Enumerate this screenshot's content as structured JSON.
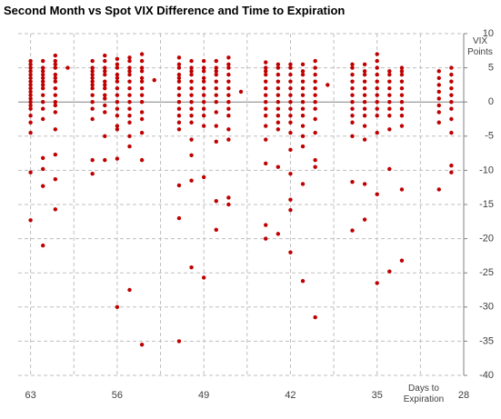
{
  "chart_data": {
    "type": "scatter",
    "title": "Second Month vs Spot VIX Difference and Time to Expiration",
    "x_label": "Days to Expiration",
    "y_label": "VIX Points",
    "color": "#c00000",
    "grid": true,
    "xlim": [
      64,
      28
    ],
    "xticks": [
      63,
      56,
      49,
      42,
      35,
      28
    ],
    "ylim": [
      10,
      -40
    ],
    "yticks": [
      10,
      5,
      0,
      -5,
      -10,
      -15,
      -20,
      -25,
      -30,
      -35,
      -40
    ],
    "x": [
      63,
      63,
      63,
      63,
      63,
      63,
      63,
      63,
      63,
      63,
      63,
      63,
      63,
      63,
      63,
      63,
      63,
      63,
      63,
      63,
      62,
      62,
      62,
      62,
      62,
      62,
      62,
      62,
      62,
      62,
      62,
      62,
      62,
      62,
      62,
      62,
      61,
      61,
      61,
      61,
      61,
      61,
      61,
      61,
      61,
      61,
      61,
      61,
      61,
      61,
      61,
      61,
      60,
      58,
      58,
      58,
      58,
      58,
      58,
      58,
      58,
      58,
      58,
      58,
      58,
      58,
      58,
      57,
      57,
      57,
      57,
      57,
      57,
      57,
      57,
      57,
      57,
      57,
      57,
      57,
      57,
      56,
      56,
      56,
      56,
      56,
      56,
      56,
      56,
      56,
      56,
      56,
      56,
      56,
      56,
      56,
      55,
      55,
      55,
      55,
      55,
      55,
      55,
      55,
      55,
      55,
      55,
      55,
      55,
      55,
      55,
      54,
      54,
      54,
      54,
      54,
      54,
      54,
      54,
      54,
      54,
      54,
      54,
      54,
      54,
      53,
      51,
      51,
      51,
      51,
      51,
      51,
      51,
      51,
      51,
      51,
      51,
      51,
      51,
      51,
      51,
      51,
      50,
      50,
      50,
      50,
      50,
      50,
      50,
      50,
      50,
      50,
      50,
      50,
      50,
      50,
      50,
      49,
      49,
      49,
      49,
      49,
      49,
      49,
      49,
      49,
      49,
      49,
      49,
      49,
      48,
      48,
      48,
      48,
      48,
      48,
      48,
      48,
      48,
      48,
      48,
      48,
      48,
      47,
      47,
      47,
      47,
      47,
      47,
      47,
      47,
      47,
      47,
      47,
      47,
      47,
      47,
      46,
      44,
      44,
      44,
      44,
      44,
      44,
      44,
      44,
      44,
      44,
      44,
      44,
      44,
      44,
      44,
      43,
      43,
      43,
      43,
      43,
      43,
      43,
      43,
      43,
      43,
      43,
      43,
      43,
      42,
      42,
      42,
      42,
      42,
      42,
      42,
      42,
      42,
      42,
      42,
      42,
      42,
      42,
      42,
      42,
      41,
      41,
      41,
      41,
      41,
      41,
      41,
      41,
      41,
      41,
      41,
      41,
      41,
      41,
      40,
      40,
      40,
      40,
      40,
      40,
      40,
      40,
      40,
      40,
      40,
      40,
      40,
      39,
      37,
      37,
      37,
      37,
      37,
      37,
      37,
      37,
      37,
      37,
      37,
      37,
      37,
      36,
      36,
      36,
      36,
      36,
      36,
      36,
      36,
      36,
      36,
      36,
      36,
      36,
      35,
      35,
      35,
      35,
      35,
      35,
      35,
      35,
      35,
      35,
      35,
      35,
      35,
      34,
      34,
      34,
      34,
      34,
      34,
      34,
      34,
      34,
      34,
      34,
      33,
      33,
      33,
      33,
      33,
      33,
      33,
      33,
      33,
      33,
      33,
      33,
      30,
      30,
      30,
      30,
      30,
      30,
      30,
      30,
      30,
      29,
      29,
      29,
      29,
      29,
      29,
      29,
      29,
      29,
      29,
      29
    ],
    "series": [
      {
        "name": "VIX Difference",
        "color": "#c00000",
        "values": [
          6,
          5.5,
          5,
          4.5,
          4,
          3.5,
          3,
          2.5,
          2,
          1.5,
          1,
          0.5,
          0,
          -0.5,
          -1,
          -2,
          -3,
          -4.5,
          -10.3,
          -17.3,
          6,
          5,
          4.5,
          4,
          3.5,
          3,
          2.5,
          2,
          1,
          0,
          -1,
          -2.5,
          -8.2,
          -9.8,
          -12.3,
          -21,
          6.8,
          6,
          5.5,
          5,
          4,
          3.5,
          3,
          2,
          1,
          0,
          -0.5,
          -1.5,
          -4,
          -7.7,
          -11.3,
          -15.7,
          5,
          6,
          5,
          4.5,
          4,
          3.5,
          3,
          2.5,
          2,
          1,
          0,
          -1,
          -2.5,
          -8.5,
          -10.5,
          6.8,
          6,
          5,
          4.5,
          4,
          3,
          2.5,
          2,
          1,
          0.5,
          -0.5,
          -1.5,
          -5,
          -8.5,
          6.3,
          5.5,
          5,
          4,
          3.5,
          3,
          2,
          1,
          0,
          -1,
          -2,
          -3.5,
          -4,
          -8.3,
          -30,
          6.5,
          6,
          5,
          4.5,
          4,
          3,
          2,
          1,
          0,
          -1,
          -2,
          -3,
          -5,
          -6.5,
          -27.5,
          7,
          6,
          5,
          4.5,
          3.5,
          3,
          2,
          1,
          0,
          -1.5,
          -2.5,
          -4.5,
          -8.5,
          -35.5,
          3.2,
          6.5,
          5.5,
          5,
          4,
          3.5,
          3,
          2,
          1,
          0,
          -1,
          -2,
          -3,
          -4,
          -12.2,
          -17,
          -35,
          6,
          5,
          4.5,
          4,
          3,
          2,
          1,
          0,
          -1,
          -2,
          -3,
          -5.5,
          -7.8,
          -11.5,
          -24.2,
          6,
          5,
          4.5,
          3.5,
          3,
          2,
          1,
          0,
          -1,
          -2,
          -3.5,
          -11,
          -25.7,
          6,
          5,
          4.5,
          4,
          3,
          2,
          1,
          0,
          -1.5,
          -3.5,
          -5.8,
          -14.5,
          -18.7,
          6.5,
          5.5,
          5,
          4,
          3,
          2,
          1,
          0,
          -1,
          -2,
          -4,
          -5.5,
          -14,
          -15,
          1.5,
          5.8,
          5,
          4.5,
          4,
          3,
          2,
          1,
          0,
          -1,
          -2,
          -3.5,
          -5.5,
          -9,
          -18,
          -20,
          5.5,
          5,
          4,
          3,
          2,
          1,
          0,
          -1,
          -2,
          -3,
          -4,
          -9.5,
          -19.3,
          5.5,
          5,
          4,
          3,
          2,
          1,
          0,
          -1,
          -2,
          -3,
          -4.5,
          -7,
          -10.5,
          -14.3,
          -15.8,
          -22,
          5.5,
          4.5,
          4,
          3,
          2,
          1,
          0,
          -1,
          -2,
          -3.5,
          -5,
          -6.5,
          -12,
          -26.2,
          6,
          5,
          4,
          3,
          2,
          1,
          0,
          -1,
          -2.5,
          -4.5,
          -8.5,
          -9.5,
          -31.5,
          2.5,
          5.5,
          5,
          4,
          3,
          2,
          1,
          0,
          -1,
          -2,
          -3,
          -5,
          -11.7,
          -18.8,
          5.5,
          4.5,
          4,
          3,
          2,
          1,
          0,
          -1,
          -2,
          -3.5,
          -5.5,
          -12,
          -17.2,
          7,
          6,
          5,
          4,
          3,
          2,
          1,
          0,
          -1,
          -2,
          -4.5,
          -13.5,
          -26.5,
          4.5,
          4,
          3,
          2,
          1,
          0,
          -1,
          -2,
          -4,
          -9.8,
          -24.8,
          5,
          4.5,
          4,
          3,
          2,
          1,
          0,
          -1,
          -2,
          -3.5,
          -12.8,
          -23.2,
          4.5,
          3.5,
          2.5,
          1.5,
          0.5,
          -0.5,
          -1.5,
          -3,
          -12.8,
          5,
          4,
          3,
          2,
          1,
          0,
          -1,
          -2.5,
          -4.5,
          -9.3,
          -10.3
        ]
      }
    ]
  }
}
